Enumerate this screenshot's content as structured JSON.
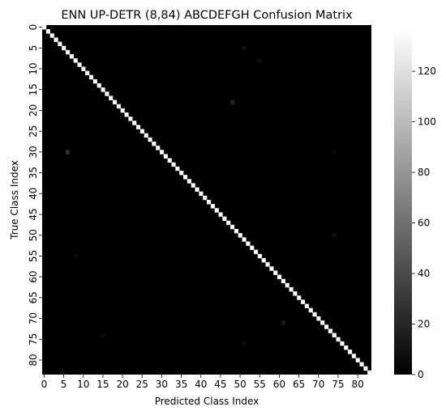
{
  "chart_data": {
    "type": "heatmap",
    "title": "ENN UP-DETR (8,84) ABCDEFGH Confusion Matrix",
    "xlabel": "Predicted Class Index",
    "ylabel": "True Class Index",
    "n_classes": 84,
    "x_ticks": [
      0,
      5,
      10,
      15,
      20,
      25,
      30,
      35,
      40,
      45,
      50,
      55,
      60,
      65,
      70,
      75,
      80
    ],
    "y_ticks": [
      0,
      5,
      10,
      15,
      20,
      25,
      30,
      35,
      40,
      45,
      50,
      55,
      60,
      65,
      70,
      75,
      80
    ],
    "diagonal_value": 135,
    "off_diagonal_value": 0,
    "notable_off_diagonal": [
      {
        "true": 30,
        "pred": 6,
        "value": 25
      },
      {
        "true": 18,
        "pred": 48,
        "value": 18
      },
      {
        "true": 71,
        "pred": 61,
        "value": 14
      },
      {
        "true": 5,
        "pred": 51,
        "value": 10
      },
      {
        "true": 50,
        "pred": 74,
        "value": 8
      },
      {
        "true": 74,
        "pred": 15,
        "value": 6
      },
      {
        "true": 76,
        "pred": 51,
        "value": 6
      },
      {
        "true": 8,
        "pred": 55,
        "value": 6
      },
      {
        "true": 55,
        "pred": 8,
        "value": 5
      },
      {
        "true": 30,
        "pred": 74,
        "value": 5
      }
    ],
    "colormap": "gray",
    "colorbar": {
      "min": 0,
      "max": 137,
      "ticks": [
        0,
        20,
        40,
        60,
        80,
        100,
        120
      ]
    }
  }
}
